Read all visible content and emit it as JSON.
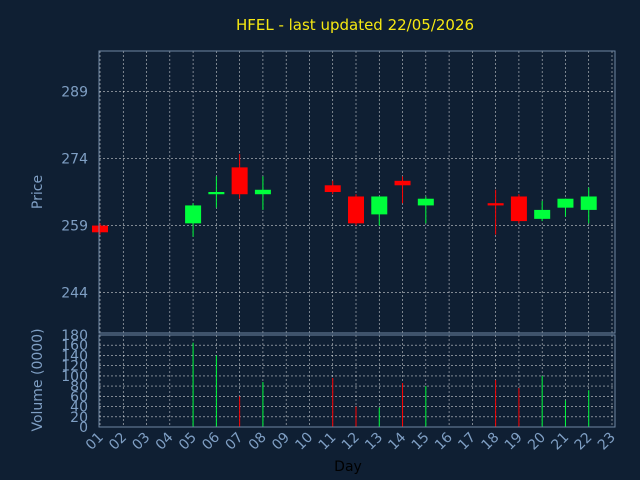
{
  "chart_data": {
    "type": "candlestick",
    "title": "HFEL - last updated 22/05/2026",
    "xlabel": "Day",
    "colors": {
      "background": "#0f1f33",
      "up": "#00ff3c",
      "down": "#ff0000",
      "grid": "#ffffff",
      "axis_text": "#7f9fc4",
      "title": "#f5e812"
    },
    "grid": true,
    "x_ticks": [
      "01",
      "02",
      "03",
      "04",
      "05",
      "06",
      "07",
      "08",
      "09",
      "10",
      "11",
      "12",
      "13",
      "14",
      "15",
      "16",
      "17",
      "18",
      "19",
      "20",
      "21",
      "22",
      "23"
    ],
    "price_panel": {
      "ylabel": "Price",
      "yticks": [
        244,
        259,
        274,
        289
      ],
      "ylim": [
        235,
        298
      ]
    },
    "volume_panel": {
      "ylabel": "Volume (0000)",
      "yticks": [
        0,
        20,
        40,
        60,
        80,
        100,
        120,
        140,
        160,
        180
      ],
      "ylim": [
        0,
        180
      ]
    },
    "candles": [
      {
        "day": 1,
        "open": 259,
        "high": 259.5,
        "low": 257,
        "close": 257.5,
        "volume": 0
      },
      {
        "day": 5,
        "open": 259.5,
        "high": 264,
        "low": 256.5,
        "close": 263.5,
        "volume": 165
      },
      {
        "day": 6,
        "open": 266,
        "high": 270,
        "low": 263,
        "close": 266.5,
        "volume": 140
      },
      {
        "day": 7,
        "open": 272,
        "high": 275,
        "low": 265,
        "close": 266,
        "volume": 60
      },
      {
        "day": 8,
        "open": 266,
        "high": 270,
        "low": 262.5,
        "close": 267,
        "volume": 88
      },
      {
        "day": 11,
        "open": 268,
        "high": 269,
        "low": 266,
        "close": 266.5,
        "volume": 96
      },
      {
        "day": 12,
        "open": 265.5,
        "high": 266,
        "low": 259,
        "close": 259.5,
        "volume": 40
      },
      {
        "day": 13,
        "open": 261.5,
        "high": 265.5,
        "low": 259,
        "close": 265.5,
        "volume": 38
      },
      {
        "day": 14,
        "open": 269,
        "high": 270,
        "low": 264,
        "close": 268,
        "volume": 86
      },
      {
        "day": 15,
        "open": 263.5,
        "high": 265.5,
        "low": 259.5,
        "close": 265,
        "volume": 80
      },
      {
        "day": 18,
        "open": 264,
        "high": 267,
        "low": 257,
        "close": 263.5,
        "volume": 92
      },
      {
        "day": 19,
        "open": 265.5,
        "high": 266,
        "low": 259.5,
        "close": 260,
        "volume": 76
      },
      {
        "day": 20,
        "open": 260.5,
        "high": 264.5,
        "low": 260,
        "close": 262.5,
        "volume": 100
      },
      {
        "day": 21,
        "open": 263,
        "high": 265,
        "low": 261,
        "close": 265,
        "volume": 52
      },
      {
        "day": 22,
        "open": 262.5,
        "high": 267.5,
        "low": 259.5,
        "close": 265.5,
        "volume": 72
      }
    ]
  }
}
